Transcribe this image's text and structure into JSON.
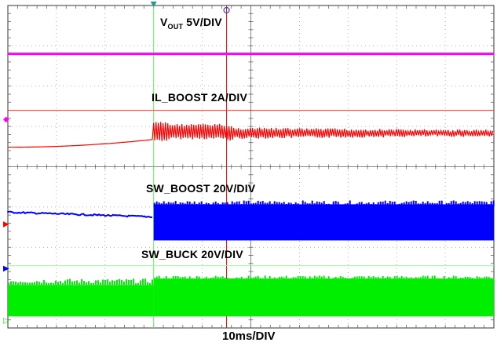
{
  "chart_data": {
    "type": "line",
    "title": "",
    "xlabel": "10ms/DIV",
    "x_divisions": 10,
    "y_divisions": 8,
    "traces": [
      {
        "name": "VOUT",
        "scale": "5V/DIV",
        "color": "#ff00ff",
        "label_main": "V",
        "label_sub": "OUT",
        "label_scale": " 5V/DIV",
        "marker": "◆",
        "level_div": 6.8
      },
      {
        "name": "IL_BOOST",
        "scale": "2A/DIV",
        "color": "#ff0000",
        "label": "IL_BOOST 2A/DIV",
        "marker": "▶",
        "level_div": 4.95
      },
      {
        "name": "SW_BOOST",
        "scale": "20V/DIV",
        "color": "#0000ff",
        "label": "SW_BOOST 20V/DIV",
        "marker": "▶",
        "level_div": 2.95
      },
      {
        "name": "SW_BUCK",
        "scale": "20V/DIV",
        "color": "#00ee00",
        "label": "SW_BUCK 20V/DIV",
        "marker": "▷",
        "level_div": 0.95
      }
    ],
    "cursor_markers": [
      {
        "name": "trigger",
        "color": "#1a9f8f",
        "x_div": 3.0
      },
      {
        "name": "cursor",
        "color": "#3344cc",
        "x_div": 4.5
      }
    ],
    "cursors": [
      {
        "orientation": "vertical",
        "color": "#66ee66",
        "x_div": 3.0
      },
      {
        "orientation": "vertical",
        "color": "#ff0000",
        "x_div": 4.5
      },
      {
        "orientation": "horizontal",
        "color": "#ff3333",
        "y_div": 5.4
      },
      {
        "orientation": "horizontal",
        "color": "#99ff99",
        "y_div": 1.55
      }
    ]
  }
}
